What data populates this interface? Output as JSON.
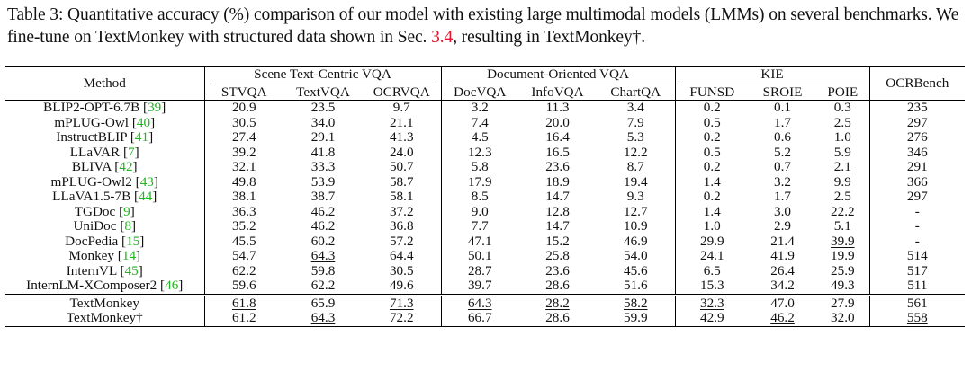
{
  "caption": {
    "label": "Table 3:",
    "text_a": " Quantitative accuracy (%) comparison of our model with existing large multimodal models (LMMs) on several benchmarks. We fine-tune on TextMonkey with structured data shown in Sec. ",
    "sec_ref": "3.4",
    "text_b": ", resulting in TextMonkey†."
  },
  "header": {
    "method": "Method",
    "groups": {
      "scene": "Scene Text-Centric VQA",
      "doc": "Document-Oriented VQA",
      "kie": "KIE",
      "ocrbench": "OCRBench"
    },
    "cols": [
      "STVQA",
      "TextVQA",
      "OCRVQA",
      "DocVQA",
      "InfoVQA",
      "ChartQA",
      "FUNSD",
      "SROIE",
      "POIE"
    ]
  },
  "rows": [
    {
      "name": "BLIP2-OPT-6.7B",
      "cite": "39",
      "vals": [
        "20.9",
        "23.5",
        "9.7",
        "3.2",
        "11.3",
        "3.4",
        "0.2",
        "0.1",
        "0.3",
        "235"
      ]
    },
    {
      "name": "mPLUG-Owl",
      "cite": "40",
      "vals": [
        "30.5",
        "34.0",
        "21.1",
        "7.4",
        "20.0",
        "7.9",
        "0.5",
        "1.7",
        "2.5",
        "297"
      ]
    },
    {
      "name": "InstructBLIP",
      "cite": "41",
      "vals": [
        "27.4",
        "29.1",
        "41.3",
        "4.5",
        "16.4",
        "5.3",
        "0.2",
        "0.6",
        "1.0",
        "276"
      ]
    },
    {
      "name": "LLaVAR",
      "cite": "7",
      "vals": [
        "39.2",
        "41.8",
        "24.0",
        "12.3",
        "16.5",
        "12.2",
        "0.5",
        "5.2",
        "5.9",
        "346"
      ]
    },
    {
      "name": "BLIVA",
      "cite": "42",
      "vals": [
        "32.1",
        "33.3",
        "50.7",
        "5.8",
        "23.6",
        "8.7",
        "0.2",
        "0.7",
        "2.1",
        "291"
      ]
    },
    {
      "name": "mPLUG-Owl2",
      "cite": "43",
      "vals": [
        "49.8",
        "53.9",
        "58.7",
        "17.9",
        "18.9",
        "19.4",
        "1.4",
        "3.2",
        "9.9",
        "366"
      ]
    },
    {
      "name": "LLaVA1.5-7B",
      "cite": "44",
      "vals": [
        "38.1",
        "38.7",
        "58.1",
        "8.5",
        "14.7",
        "9.3",
        "0.2",
        "1.7",
        "2.5",
        "297"
      ]
    },
    {
      "name": "TGDoc",
      "cite": "9",
      "vals": [
        "36.3",
        "46.2",
        "37.2",
        "9.0",
        "12.8",
        "12.7",
        "1.4",
        "3.0",
        "22.2",
        "-"
      ]
    },
    {
      "name": "UniDoc",
      "cite": "8",
      "vals": [
        "35.2",
        "46.2",
        "36.8",
        "7.7",
        "14.7",
        "10.9",
        "1.0",
        "2.9",
        "5.1",
        "-"
      ]
    },
    {
      "name": "DocPedia",
      "cite": "15",
      "vals": [
        "45.5",
        "60.2",
        "57.2",
        "47.1",
        "15.2",
        "46.9",
        "29.9",
        "21.4",
        "39.9",
        "-"
      ]
    },
    {
      "name": "Monkey",
      "cite": "14",
      "vals": [
        "54.7",
        "64.3",
        "64.4",
        "50.1",
        "25.8",
        "54.0",
        "24.1",
        "41.9",
        "19.9",
        "514"
      ]
    },
    {
      "name": "InternVL",
      "cite": "45",
      "vals": [
        "62.2",
        "59.8",
        "30.5",
        "28.7",
        "23.6",
        "45.6",
        "6.5",
        "26.4",
        "25.9",
        "517"
      ]
    },
    {
      "name": "InternLM-XComposer2",
      "cite": "46",
      "vals": [
        "59.6",
        "62.2",
        "49.6",
        "39.7",
        "28.6",
        "51.6",
        "15.3",
        "34.2",
        "49.3",
        "511"
      ]
    }
  ],
  "ours": [
    {
      "name": "TextMonkey",
      "vals": [
        "61.8",
        "65.9",
        "71.3",
        "64.3",
        "28.2",
        "58.2",
        "32.3",
        "47.0",
        "27.9",
        "561"
      ]
    },
    {
      "name": "TextMonkey†",
      "vals": [
        "61.2",
        "64.3",
        "72.2",
        "66.7",
        "28.6",
        "59.9",
        "42.9",
        "46.2",
        "32.0",
        "558"
      ]
    }
  ],
  "styles": {
    "rows": [
      [
        "",
        "",
        "",
        "",
        "",
        "",
        "",
        "",
        "",
        ""
      ],
      [
        "",
        "",
        "",
        "",
        "",
        "",
        "",
        "",
        "",
        ""
      ],
      [
        "",
        "",
        "",
        "",
        "",
        "",
        "",
        "",
        "",
        ""
      ],
      [
        "",
        "",
        "",
        "",
        "",
        "",
        "",
        "",
        "",
        ""
      ],
      [
        "",
        "",
        "",
        "",
        "",
        "",
        "",
        "",
        "",
        ""
      ],
      [
        "",
        "",
        "",
        "",
        "",
        "",
        "",
        "",
        "",
        ""
      ],
      [
        "",
        "",
        "",
        "",
        "",
        "",
        "",
        "",
        "",
        ""
      ],
      [
        "",
        "",
        "",
        "",
        "",
        "",
        "",
        "",
        "",
        ""
      ],
      [
        "",
        "",
        "",
        "",
        "",
        "",
        "",
        "",
        "",
        ""
      ],
      [
        "",
        "",
        "",
        "",
        "",
        "",
        "",
        "",
        "u",
        ""
      ],
      [
        "",
        "u",
        "",
        "",
        "",
        "",
        "",
        "",
        "",
        ""
      ],
      [
        "b",
        "",
        "",
        "",
        "",
        "",
        "",
        "",
        "",
        ""
      ],
      [
        "",
        "",
        "",
        "",
        "b",
        "",
        "",
        "",
        "b",
        ""
      ]
    ],
    "ours": [
      [
        "u",
        "b",
        "u",
        "u",
        "u",
        "u",
        "u",
        "b",
        "",
        "b"
      ],
      [
        "",
        "u",
        "b",
        "b",
        "b",
        "b",
        "b",
        "u",
        "",
        "u"
      ]
    ]
  },
  "colors": {
    "section_ref": "#e0162b",
    "citation": "#22b322"
  }
}
